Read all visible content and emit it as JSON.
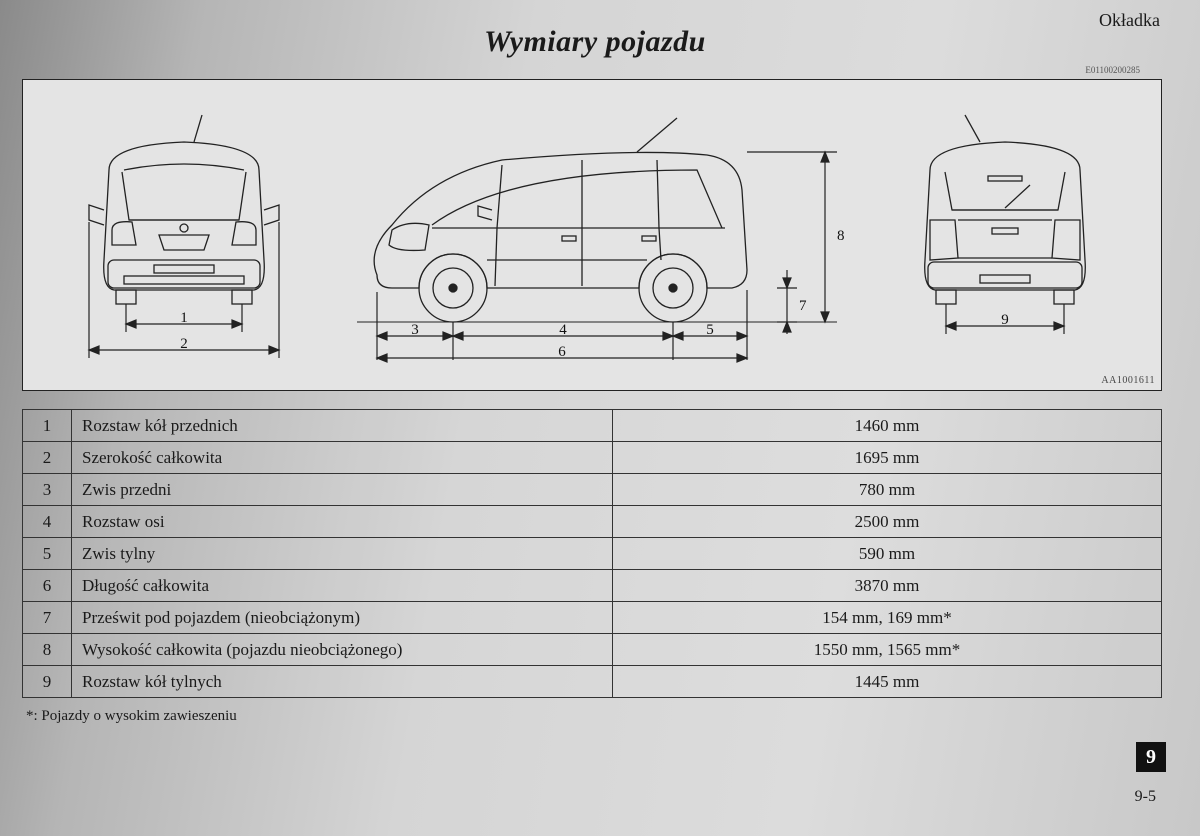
{
  "header": {
    "corner_label": "Okładka",
    "title": "Wymiary pojazdu",
    "ref_code": "E01100200285",
    "diagram_code": "AA1001611"
  },
  "diagram": {
    "front_labels": {
      "track": "1",
      "width": "2"
    },
    "side_labels": {
      "front_overhang": "3",
      "wheelbase": "4",
      "rear_overhang": "5",
      "length": "6",
      "clearance": "7",
      "height": "8"
    },
    "rear_labels": {
      "track": "9"
    },
    "line_color": "#222222",
    "line_width": 1.3
  },
  "table": {
    "rows": [
      {
        "idx": "1",
        "label": "Rozstaw kół przednich",
        "value": "1460 mm"
      },
      {
        "idx": "2",
        "label": "Szerokość całkowita",
        "value": "1695 mm"
      },
      {
        "idx": "3",
        "label": "Zwis przedni",
        "value": "780 mm"
      },
      {
        "idx": "4",
        "label": "Rozstaw osi",
        "value": "2500 mm"
      },
      {
        "idx": "5",
        "label": "Zwis tylny",
        "value": "590 mm"
      },
      {
        "idx": "6",
        "label": "Długość całkowita",
        "value": "3870 mm"
      },
      {
        "idx": "7",
        "label": "Prześwit pod pojazdem (nieobciążonym)",
        "value": "154 mm, 169 mm*"
      },
      {
        "idx": "8",
        "label": "Wysokość całkowita (pojazdu nieobciążonego)",
        "value": "1550 mm, 1565 mm*"
      },
      {
        "idx": "9",
        "label": "Rozstaw kół tylnych",
        "value": "1445 mm"
      }
    ]
  },
  "footnote": "*: Pojazdy o wysokim zawieszeniu",
  "section_tab": "9",
  "page_number": "9-5",
  "style": {
    "title_fontsize_pt": 22,
    "table_fontsize_pt": 13,
    "text_color": "#1a1a1a",
    "border_color": "#333333"
  }
}
